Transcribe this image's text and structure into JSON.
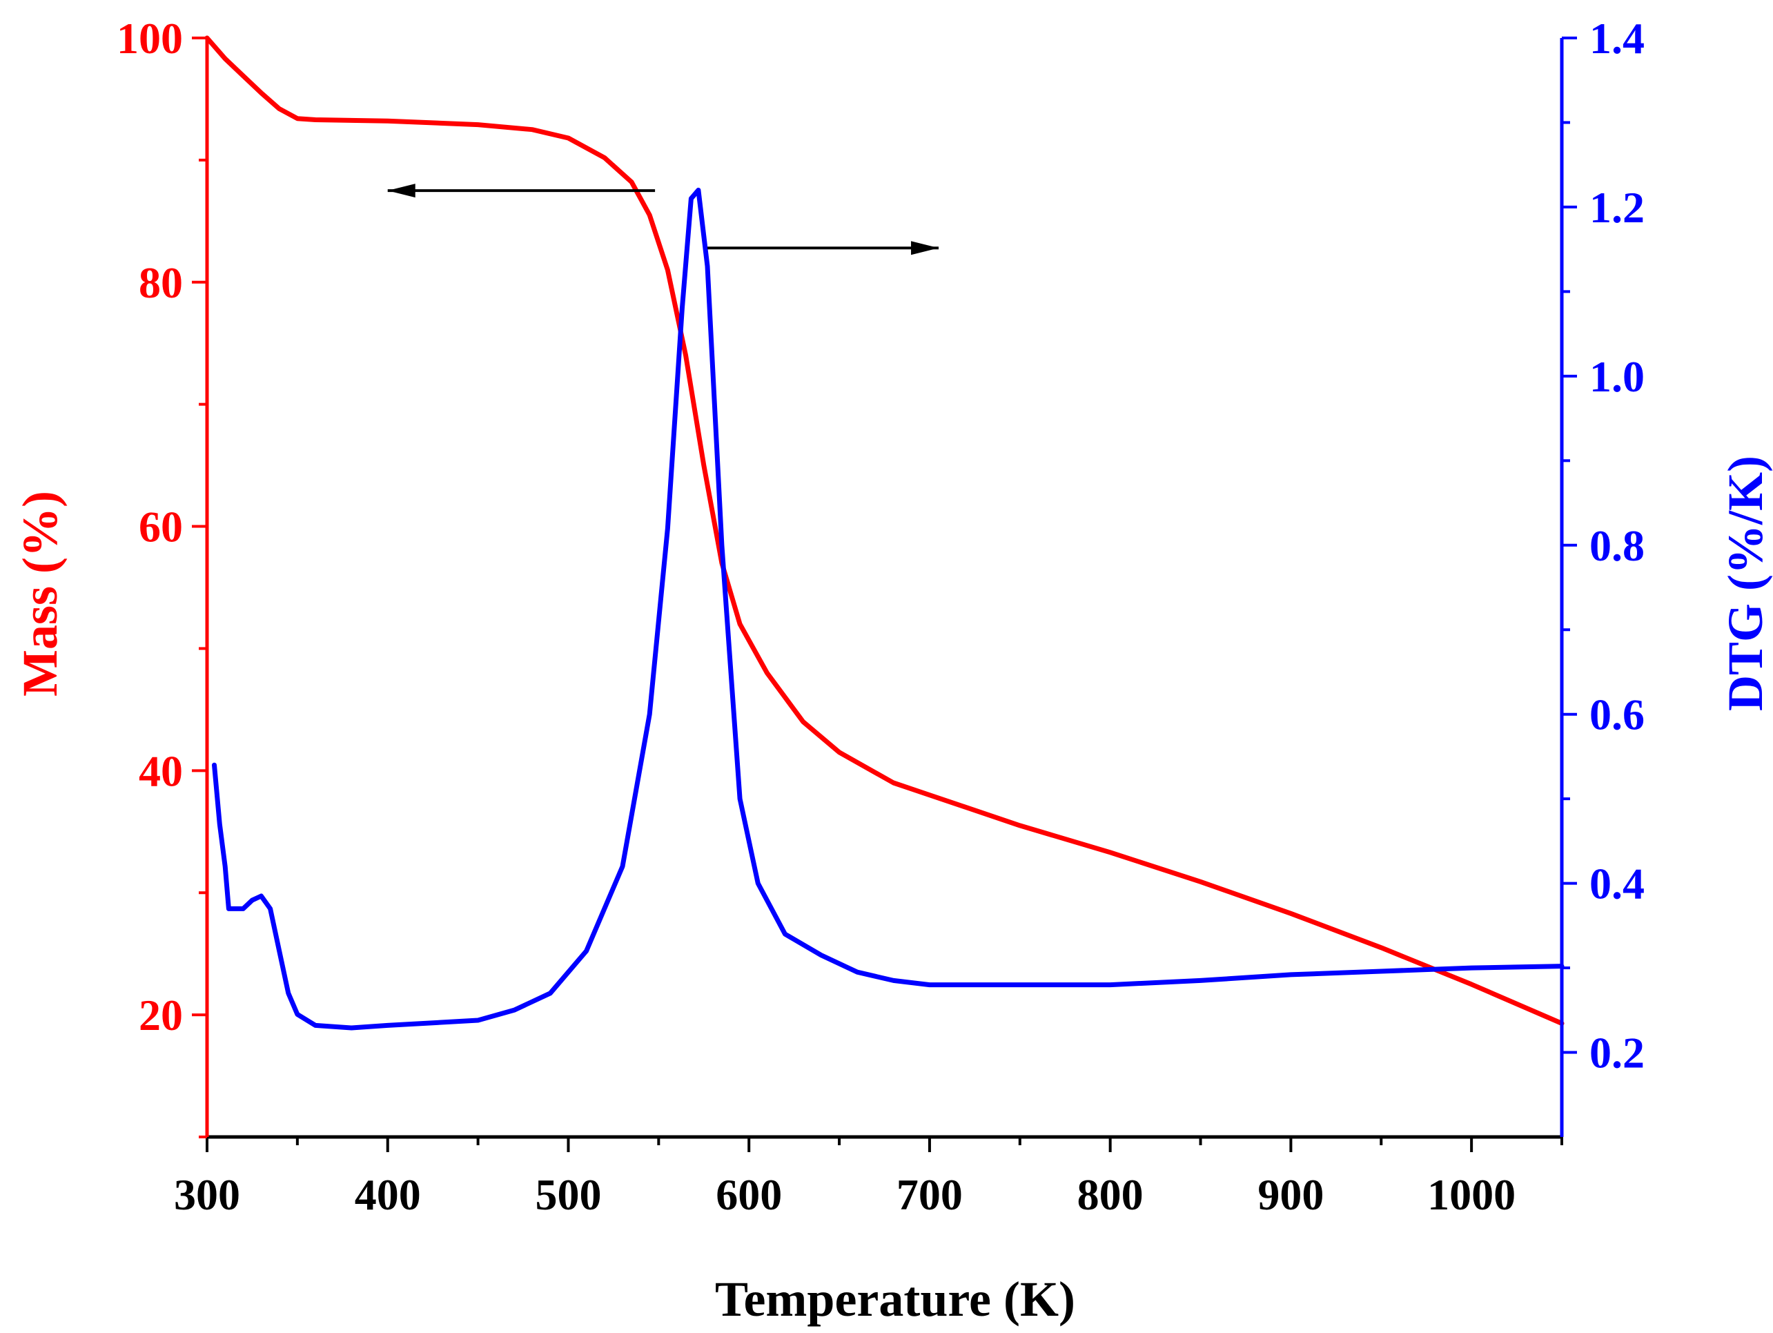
{
  "chart_data": {
    "type": "line",
    "title": "",
    "xlabel": "Temperature (K)",
    "ylabel_left": "Mass (%)",
    "ylabel_right": "DTG (%/K)",
    "xlim": [
      300,
      1050
    ],
    "ylim_left": [
      10,
      100
    ],
    "ylim_right": [
      0.1,
      1.4
    ],
    "x_ticks": [
      300,
      400,
      500,
      600,
      700,
      800,
      900,
      1000
    ],
    "x_tick_labels": [
      "300",
      "400",
      "500",
      "600",
      "700",
      "800",
      "900",
      "1000"
    ],
    "y_left_ticks": [
      20,
      40,
      60,
      80,
      100
    ],
    "y_left_tick_labels": [
      "20",
      "40",
      "60",
      "80",
      "100"
    ],
    "y_right_ticks": [
      0.2,
      0.4,
      0.6,
      0.8,
      1.0,
      1.2,
      1.4
    ],
    "y_right_tick_labels": [
      "0.2",
      "0.4",
      "0.6",
      "0.8",
      "1.0",
      "1.2",
      "1.4"
    ],
    "grid": false,
    "colors": {
      "mass": "#ff0000",
      "dtg": "#0000ff",
      "axis": "#000000",
      "arrow": "#000000"
    },
    "series": [
      {
        "name": "Mass (%)",
        "axis": "left",
        "color": "#ff0000",
        "x": [
          300,
          310,
          320,
          330,
          340,
          350,
          360,
          400,
          450,
          480,
          500,
          520,
          535,
          545,
          555,
          565,
          575,
          585,
          595,
          610,
          630,
          650,
          680,
          700,
          750,
          800,
          850,
          900,
          950,
          1000,
          1050
        ],
        "y": [
          100,
          98.3,
          96.9,
          95.5,
          94.2,
          93.4,
          93.3,
          93.2,
          92.9,
          92.5,
          91.8,
          90.2,
          88.2,
          85.5,
          81,
          74,
          65,
          57,
          52,
          48,
          44,
          41.5,
          39,
          38,
          35.5,
          33.3,
          30.9,
          28.3,
          25.5,
          22.5,
          19.3
        ]
      },
      {
        "name": "DTG (%/K)",
        "axis": "right",
        "color": "#0000ff",
        "x": [
          304,
          307,
          310,
          312,
          315,
          320,
          325,
          330,
          335,
          340,
          345,
          350,
          360,
          380,
          400,
          450,
          470,
          490,
          510,
          530,
          545,
          555,
          563,
          568,
          572,
          577,
          585,
          595,
          605,
          620,
          640,
          660,
          680,
          700,
          750,
          800,
          850,
          900,
          950,
          1000,
          1050
        ],
        "y": [
          0.54,
          0.47,
          0.42,
          0.37,
          0.37,
          0.37,
          0.38,
          0.385,
          0.37,
          0.32,
          0.27,
          0.245,
          0.232,
          0.229,
          0.232,
          0.238,
          0.25,
          0.27,
          0.32,
          0.42,
          0.6,
          0.82,
          1.08,
          1.21,
          1.22,
          1.13,
          0.8,
          0.5,
          0.4,
          0.34,
          0.315,
          0.295,
          0.285,
          0.28,
          0.28,
          0.28,
          0.285,
          0.292,
          0.296,
          0.3,
          0.302
        ]
      }
    ],
    "annotations": [
      {
        "type": "arrow",
        "direction": "left",
        "points_to": "Mass (%)",
        "from": {
          "x": 548,
          "y_left": 87.5
        },
        "to": {
          "x": 400,
          "y_left": 87.5
        }
      },
      {
        "type": "arrow",
        "direction": "right",
        "points_to": "DTG (%/K)",
        "from": {
          "x": 577,
          "y_left": 82.8
        },
        "to": {
          "x": 705,
          "y_left": 82.8
        }
      }
    ]
  }
}
